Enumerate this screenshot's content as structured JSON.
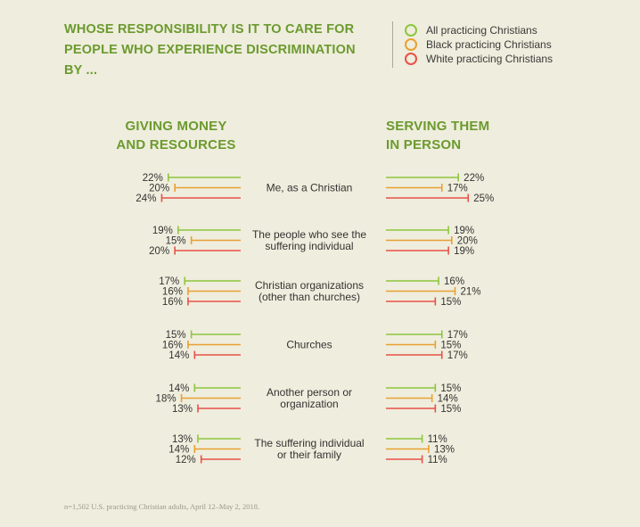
{
  "title": "WHOSE RESPONSIBILITY IS IT TO CARE FOR PEOPLE WHO EXPERIENCE DISCRIMINATION BY ...",
  "legend": [
    {
      "label": "All practicing Christians",
      "color": "#8dc63f"
    },
    {
      "label": "Black practicing Christians",
      "color": "#e8a033"
    },
    {
      "label": "White practicing Christians",
      "color": "#e8514a"
    }
  ],
  "left_heading": "GIVING MONEY\nAND RESOURCES",
  "right_heading": "SERVING THEM\nIN PERSON",
  "footnote": "n=1,502 U.S. practicing Christian adults, April 12–May 2, 2018.",
  "chart_data": {
    "type": "bar",
    "categories": [
      [
        "Me, as a Christian"
      ],
      [
        "The people who see the",
        "suffering individual"
      ],
      [
        "Christian organizations",
        "(other than churches)"
      ],
      [
        "Churches"
      ],
      [
        "Another person or",
        "organization"
      ],
      [
        "The suffering individual",
        "or their family"
      ]
    ],
    "value_suffix": "%",
    "panels": [
      {
        "name": "GIVING MONEY AND RESOURCES",
        "direction": "left",
        "series": [
          {
            "name": "All practicing Christians",
            "values": [
              22,
              19,
              17,
              15,
              14,
              13
            ]
          },
          {
            "name": "Black practicing Christians",
            "values": [
              20,
              15,
              16,
              16,
              18,
              14
            ]
          },
          {
            "name": "White practicing Christians",
            "values": [
              24,
              20,
              16,
              14,
              13,
              12
            ]
          }
        ]
      },
      {
        "name": "SERVING THEM IN PERSON",
        "direction": "right",
        "series": [
          {
            "name": "All practicing Christians",
            "values": [
              22,
              19,
              16,
              17,
              15,
              11
            ]
          },
          {
            "name": "Black practicing Christians",
            "values": [
              17,
              20,
              21,
              15,
              14,
              13
            ]
          },
          {
            "name": "White practicing Christians",
            "values": [
              25,
              19,
              15,
              17,
              15,
              11
            ]
          }
        ]
      }
    ]
  }
}
